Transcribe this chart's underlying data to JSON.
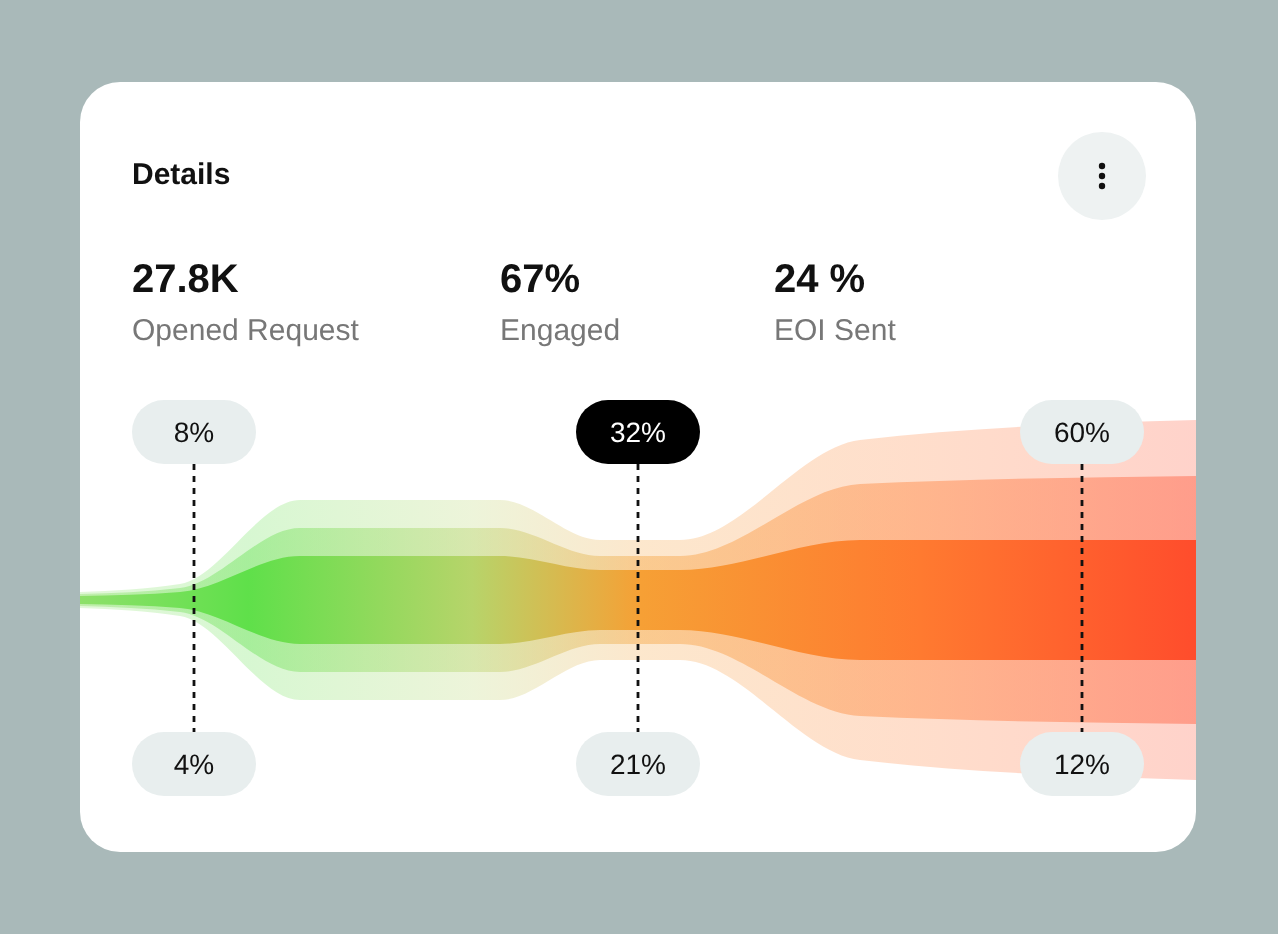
{
  "chart_data": {
    "type": "other",
    "title": "Details",
    "annotations": [
      "27.8K",
      "Opened Request",
      "67%",
      "Engaged",
      "24 %",
      "EOI Sent"
    ],
    "categories": [
      null,
      null,
      null,
      null,
      null,
      null
    ],
    "values": [
      8,
      32,
      60,
      4,
      21,
      12
    ],
    "value_labels": [
      "8%",
      "32%",
      "60%",
      "4%",
      "21%",
      "12%"
    ],
    "colors": [
      "#e8eeee",
      "#000000",
      "#e8eeee",
      "#e8eeee",
      "#e8eeee",
      "#e8eeee"
    ]
  }
}
